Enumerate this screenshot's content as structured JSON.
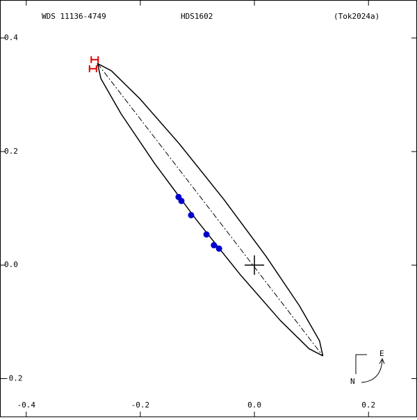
{
  "chart_data": {
    "type": "orbit",
    "title": "WDS 11136-4749",
    "subtitle": "HDS1602",
    "reference": "(Tok2024a)",
    "xlim": [
      -0.446,
      0.285
    ],
    "ylim": [
      -0.268,
      0.467
    ],
    "xticks": [
      -0.4,
      -0.2,
      {
        "value": 0,
        "label": "0.0"
      },
      0.2
    ],
    "yticks": [
      0.4,
      0.2,
      {
        "value": 0,
        "label": "0.0"
      },
      -0.2
    ],
    "orbit": {
      "color": "#000000",
      "x": [
        0.12,
        0.1141,
        0.0789,
        0.0201,
        -0.0537,
        -0.1311,
        -0.2003,
        -0.2509,
        -0.275,
        -0.2691,
        -0.2339,
        -0.1751,
        -0.1013,
        -0.0239,
        0.0453,
        0.0959,
        0.12
      ],
      "y": [
        -0.16,
        -0.1334,
        -0.0717,
        0.0158,
        0.1158,
        0.213,
        0.2925,
        0.3424,
        0.355,
        0.3284,
        0.2667,
        0.1792,
        0.0792,
        -0.018,
        -0.0975,
        -0.1474,
        -0.16
      ]
    },
    "line_of_apsides": {
      "x": [
        -0.275,
        0.12
      ],
      "y": [
        0.355,
        -0.16
      ]
    },
    "observations": {
      "color": "#0000cc",
      "x": [
        -0.133,
        -0.128,
        -0.111,
        -0.084,
        -0.071,
        -0.062
      ],
      "y": [
        0.12,
        0.113,
        0.088,
        0.054,
        0.035,
        0.029
      ]
    },
    "first_measures": {
      "color": "#dd0000",
      "x": [
        -0.28,
        -0.283
      ],
      "y": [
        0.362,
        0.346
      ]
    },
    "primary": {
      "x": 0,
      "y": 0
    },
    "compass": {
      "east": "E",
      "north": "N"
    }
  }
}
